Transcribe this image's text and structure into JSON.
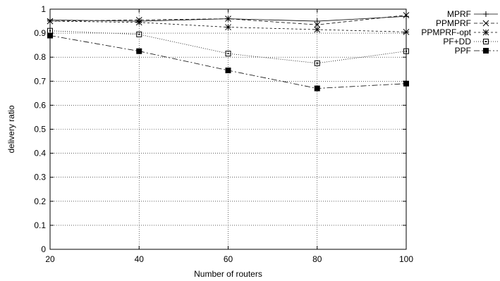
{
  "chart_data": {
    "type": "line",
    "title": "",
    "xlabel": "Number of routers",
    "ylabel": "delivery ratio",
    "x": [
      20,
      40,
      60,
      80,
      100
    ],
    "xlim": [
      20,
      100
    ],
    "ylim": [
      0,
      1
    ],
    "xticks": [
      "20",
      "40",
      "60",
      "80",
      "100"
    ],
    "yticks": [
      "0",
      "0.1",
      "0.2",
      "0.3",
      "0.4",
      "0.5",
      "0.6",
      "0.7",
      "0.8",
      "0.9",
      "1"
    ],
    "grid": true,
    "legend_position": "top-right, outside plot",
    "series": [
      {
        "name": "MPRF",
        "marker": "plus",
        "dash": "solid",
        "values": [
          0.955,
          0.95,
          0.96,
          0.95,
          0.97
        ]
      },
      {
        "name": "PPMPRF",
        "marker": "x",
        "dash": "dashed",
        "values": [
          0.95,
          0.955,
          0.96,
          0.935,
          0.975
        ]
      },
      {
        "name": "PPMPRF-opt",
        "marker": "asterisk",
        "dash": "short-dashed",
        "values": [
          0.95,
          0.945,
          0.925,
          0.915,
          0.905
        ]
      },
      {
        "name": "PF+DD",
        "marker": "open-square",
        "dash": "dotted",
        "values": [
          0.91,
          0.895,
          0.815,
          0.775,
          0.825
        ]
      },
      {
        "name": "PPF",
        "marker": "filled-square",
        "dash": "dash-dot",
        "values": [
          0.89,
          0.825,
          0.745,
          0.67,
          0.69
        ]
      }
    ]
  }
}
